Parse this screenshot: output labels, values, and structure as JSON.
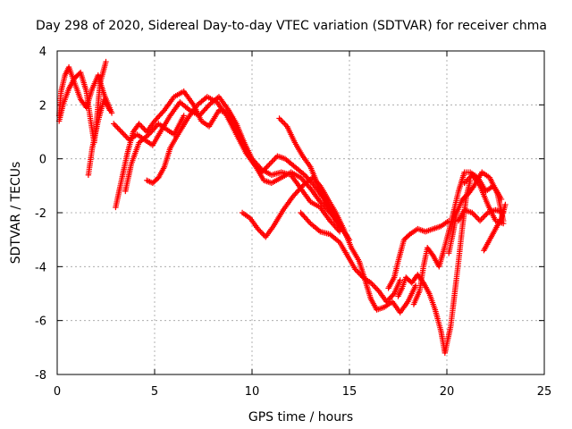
{
  "chart_data": {
    "type": "scatter",
    "title": "Day 298 of 2020, Sidereal Day-to-day VTEC variation (SDTVAR) for receiver chma",
    "xlabel": "GPS time / hours",
    "ylabel": "SDTVAR / TECUs",
    "xlim": [
      0,
      25
    ],
    "ylim": [
      -8,
      4
    ],
    "x_ticks": [
      "0",
      "5",
      "10",
      "15",
      "20",
      "25"
    ],
    "y_ticks": [
      "-8",
      "-6",
      "-4",
      "-2",
      "0",
      "2",
      "4"
    ],
    "grid": true,
    "marker": "plus",
    "color": "#ff0000",
    "series": [
      {
        "tracks": [
          [
            [
              0.1,
              1.6
            ],
            [
              0.2,
              2.5
            ],
            [
              0.4,
              3.1
            ],
            [
              0.6,
              3.4
            ],
            [
              0.9,
              2.8
            ],
            [
              1.2,
              2.2
            ],
            [
              1.5,
              1.9
            ],
            [
              1.8,
              2.6
            ],
            [
              2.1,
              3.1
            ],
            [
              2.4,
              2.4
            ],
            [
              2.8,
              1.7
            ]
          ],
          [
            [
              0.1,
              1.4
            ],
            [
              0.3,
              2.0
            ],
            [
              0.6,
              2.6
            ],
            [
              0.9,
              3.0
            ],
            [
              1.2,
              3.2
            ],
            [
              1.5,
              2.5
            ],
            [
              1.7,
              1.5
            ],
            [
              1.9,
              0.6
            ],
            [
              2.0,
              1.2
            ],
            [
              2.2,
              2.8
            ],
            [
              2.5,
              3.6
            ]
          ],
          [
            [
              1.6,
              -0.6
            ],
            [
              1.8,
              0.4
            ],
            [
              2.1,
              1.4
            ],
            [
              2.4,
              2.2
            ],
            [
              2.7,
              1.8
            ]
          ],
          [
            [
              3.0,
              -1.8
            ],
            [
              3.3,
              -0.8
            ],
            [
              3.6,
              0.2
            ],
            [
              3.9,
              1.0
            ],
            [
              4.2,
              1.3
            ],
            [
              4.6,
              1.0
            ],
            [
              5.0,
              1.4
            ],
            [
              5.5,
              1.8
            ],
            [
              6.0,
              2.3
            ],
            [
              6.5,
              2.5
            ],
            [
              7.0,
              2.0
            ],
            [
              7.4,
              1.4
            ],
            [
              7.8,
              1.2
            ],
            [
              8.3,
              1.8
            ],
            [
              8.8,
              1.7
            ],
            [
              9.3,
              1.0
            ],
            [
              9.7,
              0.3
            ],
            [
              10.1,
              -0.2
            ],
            [
              10.5,
              -0.5
            ],
            [
              10.9,
              -0.2
            ],
            [
              11.3,
              0.1
            ],
            [
              11.7,
              0.0
            ],
            [
              12.2,
              -0.3
            ],
            [
              12.7,
              -0.6
            ],
            [
              13.2,
              -1.0
            ],
            [
              13.7,
              -1.5
            ],
            [
              14.2,
              -2.1
            ],
            [
              14.6,
              -2.6
            ],
            [
              15.0,
              -3.0
            ]
          ],
          [
            [
              2.9,
              1.3
            ],
            [
              3.3,
              1.0
            ],
            [
              3.7,
              0.7
            ],
            [
              4.1,
              0.9
            ],
            [
              4.5,
              0.7
            ],
            [
              4.9,
              0.5
            ],
            [
              5.3,
              1.0
            ],
            [
              5.8,
              1.6
            ],
            [
              6.3,
              2.1
            ],
            [
              6.8,
              1.8
            ],
            [
              7.3,
              1.6
            ],
            [
              7.8,
              2.0
            ],
            [
              8.3,
              2.3
            ],
            [
              8.8,
              1.8
            ],
            [
              9.2,
              1.3
            ],
            [
              9.6,
              0.6
            ],
            [
              10.0,
              0.0
            ],
            [
              10.5,
              -0.4
            ],
            [
              11.0,
              -0.6
            ],
            [
              11.5,
              -0.5
            ],
            [
              12.0,
              -0.6
            ],
            [
              12.5,
              -1.1
            ],
            [
              13.0,
              -1.6
            ],
            [
              13.5,
              -1.8
            ],
            [
              14.0,
              -2.3
            ],
            [
              14.5,
              -2.7
            ]
          ],
          [
            [
              3.5,
              -1.2
            ],
            [
              3.8,
              -0.2
            ],
            [
              4.2,
              0.6
            ],
            [
              4.7,
              0.9
            ],
            [
              5.2,
              1.3
            ],
            [
              5.6,
              1.1
            ],
            [
              6.0,
              0.9
            ],
            [
              6.5,
              1.6
            ]
          ],
          [
            [
              4.6,
              -0.8
            ],
            [
              4.9,
              -0.9
            ],
            [
              5.2,
              -0.7
            ],
            [
              5.5,
              -0.3
            ],
            [
              5.8,
              0.4
            ],
            [
              6.2,
              0.9
            ],
            [
              6.7,
              1.5
            ],
            [
              7.2,
              2.0
            ],
            [
              7.7,
              2.3
            ],
            [
              8.2,
              2.1
            ],
            [
              8.7,
              1.6
            ],
            [
              9.2,
              0.9
            ],
            [
              9.7,
              0.2
            ],
            [
              10.2,
              -0.3
            ],
            [
              10.6,
              -0.8
            ],
            [
              11.0,
              -0.9
            ],
            [
              11.5,
              -0.7
            ],
            [
              12.0,
              -0.5
            ],
            [
              12.5,
              -0.7
            ],
            [
              13.0,
              -1.1
            ],
            [
              13.5,
              -1.6
            ],
            [
              14.0,
              -2.0
            ],
            [
              14.4,
              -2.3
            ]
          ],
          [
            [
              9.5,
              -2.0
            ],
            [
              9.9,
              -2.2
            ],
            [
              10.3,
              -2.6
            ],
            [
              10.7,
              -2.9
            ],
            [
              11.1,
              -2.5
            ],
            [
              11.6,
              -1.9
            ],
            [
              12.1,
              -1.4
            ],
            [
              12.6,
              -1.0
            ],
            [
              13.1,
              -0.7
            ],
            [
              13.5,
              -1.0
            ],
            [
              13.9,
              -1.5
            ],
            [
              14.3,
              -2.0
            ],
            [
              14.7,
              -2.6
            ],
            [
              15.1,
              -3.3
            ],
            [
              15.5,
              -3.8
            ],
            [
              15.8,
              -4.5
            ],
            [
              16.1,
              -5.2
            ],
            [
              16.4,
              -5.6
            ],
            [
              16.8,
              -5.5
            ],
            [
              17.2,
              -5.3
            ],
            [
              17.6,
              -5.7
            ],
            [
              18.0,
              -5.3
            ],
            [
              18.4,
              -4.7
            ]
          ],
          [
            [
              11.4,
              1.5
            ],
            [
              11.8,
              1.2
            ],
            [
              12.2,
              0.6
            ],
            [
              12.6,
              0.1
            ],
            [
              13.0,
              -0.3
            ],
            [
              13.4,
              -1.0
            ],
            [
              13.8,
              -1.6
            ],
            [
              14.2,
              -2.2
            ],
            [
              14.6,
              -2.6
            ]
          ],
          [
            [
              12.5,
              -2.0
            ],
            [
              13.0,
              -2.4
            ],
            [
              13.5,
              -2.7
            ],
            [
              14.0,
              -2.8
            ],
            [
              14.5,
              -3.1
            ],
            [
              14.9,
              -3.6
            ],
            [
              15.3,
              -4.1
            ],
            [
              15.7,
              -4.4
            ],
            [
              16.1,
              -4.6
            ],
            [
              16.5,
              -4.9
            ],
            [
              16.9,
              -5.3
            ],
            [
              17.3,
              -5.0
            ],
            [
              17.6,
              -4.5
            ]
          ],
          [
            [
              17.0,
              -4.8
            ],
            [
              17.3,
              -4.4
            ],
            [
              17.5,
              -3.8
            ],
            [
              17.8,
              -3.0
            ],
            [
              18.1,
              -2.8
            ],
            [
              18.5,
              -2.6
            ],
            [
              18.9,
              -2.7
            ],
            [
              19.3,
              -2.6
            ],
            [
              19.7,
              -2.5
            ],
            [
              20.1,
              -2.3
            ]
          ],
          [
            [
              17.5,
              -5.1
            ],
            [
              17.7,
              -4.8
            ],
            [
              17.9,
              -4.4
            ],
            [
              18.2,
              -4.6
            ],
            [
              18.5,
              -4.3
            ],
            [
              18.8,
              -4.6
            ],
            [
              19.1,
              -5.0
            ],
            [
              19.4,
              -5.6
            ],
            [
              19.7,
              -6.4
            ],
            [
              19.9,
              -7.2
            ],
            [
              20.2,
              -6.2
            ],
            [
              20.4,
              -5.0
            ],
            [
              20.6,
              -3.8
            ],
            [
              20.8,
              -2.5
            ],
            [
              21.0,
              -1.4
            ],
            [
              21.2,
              -0.8
            ]
          ],
          [
            [
              18.3,
              -5.4
            ],
            [
              18.6,
              -4.9
            ],
            [
              18.8,
              -4.0
            ],
            [
              19.0,
              -3.3
            ],
            [
              19.3,
              -3.6
            ],
            [
              19.6,
              -4.0
            ],
            [
              19.8,
              -3.5
            ],
            [
              20.1,
              -2.7
            ],
            [
              20.3,
              -2.1
            ],
            [
              20.6,
              -1.2
            ],
            [
              20.9,
              -0.5
            ],
            [
              21.2,
              -0.5
            ],
            [
              21.6,
              -0.7
            ],
            [
              22.0,
              -1.2
            ],
            [
              22.4,
              -1.0
            ],
            [
              22.8,
              -1.5
            ]
          ],
          [
            [
              20.1,
              -3.5
            ],
            [
              20.3,
              -2.8
            ],
            [
              20.5,
              -2.0
            ],
            [
              20.8,
              -1.5
            ],
            [
              21.1,
              -1.3
            ],
            [
              21.4,
              -1.0
            ],
            [
              21.8,
              -0.5
            ],
            [
              22.2,
              -0.7
            ],
            [
              22.6,
              -1.3
            ],
            [
              22.9,
              -2.3
            ]
          ],
          [
            [
              20.6,
              -2.3
            ],
            [
              20.9,
              -1.9
            ],
            [
              21.3,
              -2.0
            ],
            [
              21.7,
              -2.3
            ],
            [
              22.1,
              -2.0
            ],
            [
              22.5,
              -1.9
            ],
            [
              22.9,
              -2.0
            ]
          ],
          [
            [
              20.9,
              -0.9
            ],
            [
              21.3,
              -0.6
            ],
            [
              21.7,
              -1.0
            ],
            [
              22.1,
              -1.7
            ],
            [
              22.5,
              -2.3
            ],
            [
              22.9,
              -2.4
            ]
          ],
          [
            [
              21.9,
              -3.4
            ],
            [
              22.2,
              -3.0
            ],
            [
              22.5,
              -2.6
            ],
            [
              22.8,
              -2.2
            ],
            [
              23.0,
              -1.7
            ]
          ]
        ]
      }
    ]
  }
}
